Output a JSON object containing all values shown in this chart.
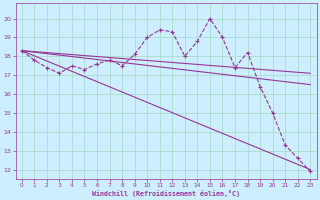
{
  "xlabel": "Windchill (Refroidissement éolien,°C)",
  "bg_color": "#cceeff",
  "grid_color": "#aaddcc",
  "line_color": "#993399",
  "xlim": [
    -0.5,
    23.5
  ],
  "ylim": [
    11.5,
    20.8
  ],
  "xticks": [
    0,
    1,
    2,
    3,
    4,
    5,
    6,
    7,
    8,
    9,
    10,
    11,
    12,
    13,
    14,
    15,
    16,
    17,
    18,
    19,
    20,
    21,
    22,
    23
  ],
  "yticks": [
    12,
    13,
    14,
    15,
    16,
    17,
    18,
    19,
    20
  ],
  "line1_x": [
    0,
    1,
    2,
    3,
    4,
    5,
    6,
    7,
    8,
    9,
    10,
    11,
    12,
    13,
    14,
    15,
    16,
    17,
    18,
    19,
    20,
    21,
    22,
    23
  ],
  "line1_y": [
    18.3,
    17.8,
    17.4,
    17.1,
    17.5,
    17.3,
    17.6,
    17.8,
    17.5,
    18.1,
    19.0,
    19.4,
    19.3,
    18.0,
    18.8,
    20.0,
    19.0,
    17.4,
    18.2,
    16.4,
    15.0,
    13.3,
    12.6,
    11.9
  ],
  "line2_x": [
    0,
    23
  ],
  "line2_y": [
    18.3,
    12.0
  ],
  "line3_x": [
    0,
    23
  ],
  "line3_y": [
    18.3,
    16.5
  ],
  "line4_x": [
    0,
    23
  ],
  "line4_y": [
    18.3,
    17.1
  ]
}
